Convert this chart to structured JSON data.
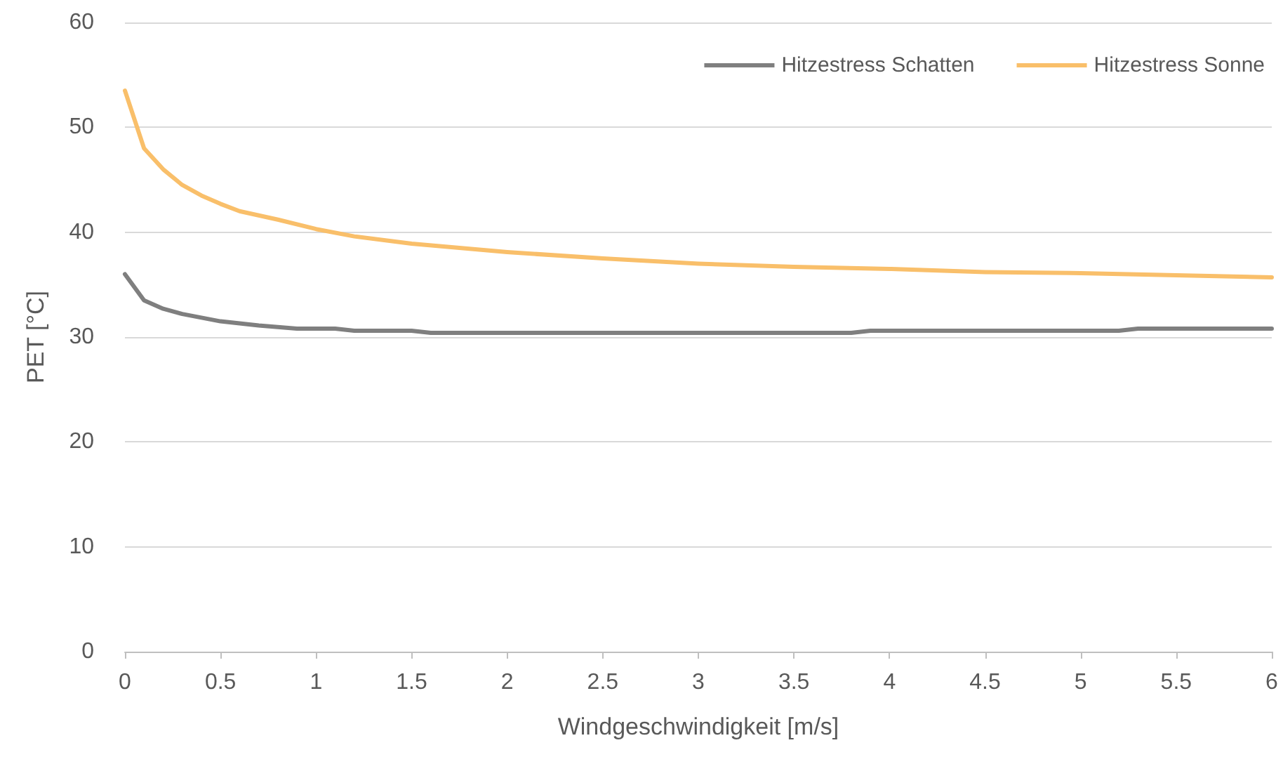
{
  "chart_data": {
    "type": "line",
    "xlabel": "Windgeschwindigkeit [m/s]",
    "ylabel": "PET [°C]",
    "xlim": [
      0,
      6
    ],
    "xticks": [
      0,
      0.5,
      1,
      1.5,
      2,
      2.5,
      3,
      3.5,
      4,
      4.5,
      5,
      5.5,
      6
    ],
    "ylim": [
      0,
      60
    ],
    "yticks": [
      0,
      10,
      20,
      30,
      40,
      50,
      60
    ],
    "grid": "y",
    "legend": "top right",
    "marker": "none",
    "line_style": "solid",
    "series": [
      {
        "name": "Hitzestress Schatten",
        "color": "#7f7f7f",
        "x": [
          0,
          0.1,
          0.2,
          0.3,
          0.5,
          0.7,
          0.9,
          1.1,
          1.2,
          1.5,
          1.6,
          3.8,
          3.9,
          5.2,
          5.3,
          6
        ],
        "values": [
          36,
          33.5,
          32.7,
          32.2,
          31.5,
          31.1,
          30.8,
          30.8,
          30.6,
          30.6,
          30.4,
          30.4,
          30.6,
          30.6,
          30.8,
          30.8
        ]
      },
      {
        "name": "Hitzestress Sonne",
        "color": "#f9bf6a",
        "x": [
          0,
          0.1,
          0.2,
          0.3,
          0.4,
          0.5,
          0.6,
          0.8,
          1,
          1.2,
          1.5,
          2,
          2.5,
          3,
          3.5,
          4,
          4.5,
          5,
          5.5,
          6
        ],
        "values": [
          53.5,
          48,
          46,
          44.5,
          43.5,
          42.7,
          42,
          41.2,
          40.3,
          39.6,
          38.9,
          38.1,
          37.5,
          37,
          36.7,
          36.5,
          36.2,
          36.1,
          35.9,
          35.7
        ]
      }
    ]
  }
}
